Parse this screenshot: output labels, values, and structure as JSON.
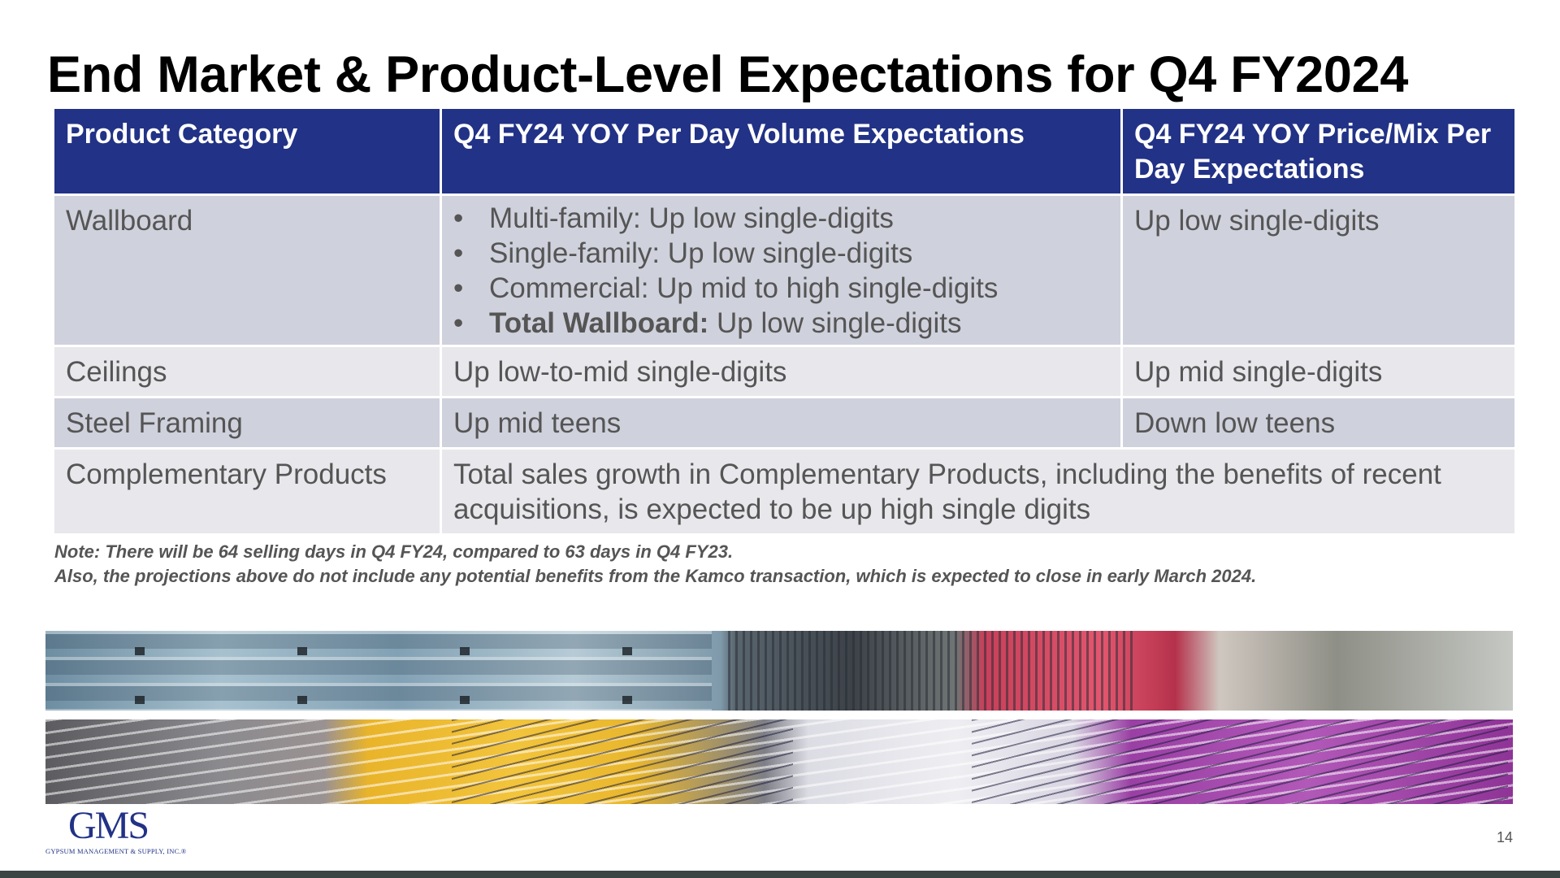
{
  "title": "End Market & Product-Level Expectations for Q4 FY2024",
  "table": {
    "headers": [
      "Product Category",
      "Q4 FY24 YOY Per Day Volume Expectations",
      "Q4 FY24 YOY Price/Mix Per Day Expectations"
    ],
    "wallboard": {
      "category": "Wallboard",
      "bullets": [
        "Multi-family: Up low single-digits",
        "Single-family: Up low single-digits",
        "Commercial: Up mid to high single-digits"
      ],
      "total_label": "Total Wallboard:",
      "total_value": " Up low single-digits",
      "price_mix": "Up low single-digits"
    },
    "ceilings": {
      "category": "Ceilings",
      "volume": "Up low-to-mid single-digits",
      "price_mix": "Up mid single-digits"
    },
    "steel_framing": {
      "category": "Steel Framing",
      "volume": "Up mid teens",
      "price_mix": "Down low teens"
    },
    "complementary": {
      "category": "Complementary Products",
      "text": "Total sales growth in Complementary Products, including the benefits of recent acquisitions, is expected to be up high single digits"
    },
    "bullet_char": "•"
  },
  "note": {
    "line1": "Note:  There will be 64 selling days in Q4 FY24, compared to 63 days in Q4 FY23.",
    "line2": "Also, the projections above do not include any potential benefits from the Kamco transaction, which is expected to close in early March 2024."
  },
  "logo": {
    "word": "GMS",
    "subtitle": "GYPSUM MANAGEMENT & SUPPLY, INC.®"
  },
  "page_number": "14",
  "colors": {
    "header_bg": "#223286",
    "row_dark": "#cfd1dc",
    "row_light": "#e7e7ec",
    "text": "#555555",
    "bottom_bar": "#3c4444"
  }
}
